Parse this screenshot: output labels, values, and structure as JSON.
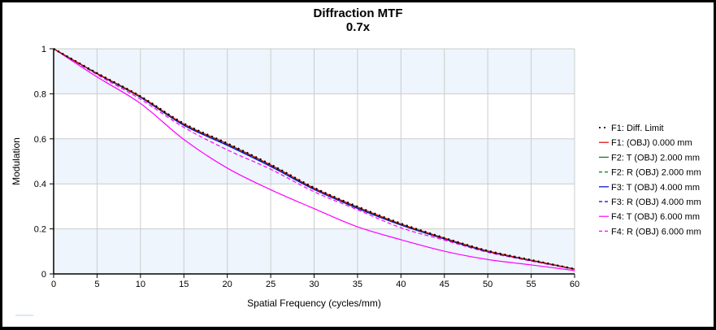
{
  "chart_data": {
    "type": "line",
    "title": "Diffraction MTF",
    "subtitle": "0.7x",
    "xlabel": "Spatial Frequency (cycles/mm)",
    "ylabel": "Modulation",
    "xlim": [
      0,
      60
    ],
    "ylim": [
      0,
      1
    ],
    "xticks": [
      0,
      5,
      10,
      15,
      20,
      25,
      30,
      35,
      40,
      45,
      50,
      55,
      60
    ],
    "yticks": [
      0,
      0.2,
      0.4,
      0.6,
      0.8,
      1
    ],
    "ytick_labels": [
      "0",
      "0.2",
      "0.4",
      "0.6",
      "0.8",
      "1"
    ],
    "grid": true,
    "legend_position": "right",
    "x": [
      0,
      5,
      10,
      15,
      20,
      25,
      30,
      35,
      40,
      45,
      50,
      55,
      60
    ],
    "series": [
      {
        "name": "F1: Diff. Limit",
        "color": "#000000",
        "style": "dotted",
        "values": [
          1,
          0.892,
          0.789,
          0.668,
          0.58,
          0.486,
          0.383,
          0.299,
          0.224,
          0.16,
          0.103,
          0.062,
          0.022
        ]
      },
      {
        "name": "F1: (OBJ) 0.000 mm",
        "color": "#e00000",
        "style": "solid",
        "values": [
          1,
          0.891,
          0.788,
          0.666,
          0.578,
          0.484,
          0.381,
          0.297,
          0.222,
          0.159,
          0.102,
          0.061,
          0.022
        ]
      },
      {
        "name": "F2: T (OBJ) 2.000 mm",
        "color": "#008000",
        "style": "solid",
        "values": [
          1,
          0.89,
          0.787,
          0.665,
          0.577,
          0.483,
          0.38,
          0.296,
          0.221,
          0.158,
          0.101,
          0.061,
          0.022
        ]
      },
      {
        "name": "F2: R (OBJ) 2.000 mm",
        "color": "#008000",
        "style": "dashed",
        "values": [
          1,
          0.89,
          0.786,
          0.664,
          0.576,
          0.482,
          0.379,
          0.295,
          0.22,
          0.157,
          0.101,
          0.06,
          0.021
        ]
      },
      {
        "name": "F3: T (OBJ) 4.000 mm",
        "color": "#0000e0",
        "style": "solid",
        "values": [
          1,
          0.889,
          0.784,
          0.66,
          0.571,
          0.477,
          0.375,
          0.291,
          0.217,
          0.155,
          0.099,
          0.059,
          0.021
        ]
      },
      {
        "name": "F3: R (OBJ) 4.000 mm",
        "color": "#0000e0",
        "style": "dashed",
        "values": [
          1,
          0.889,
          0.785,
          0.661,
          0.572,
          0.478,
          0.376,
          0.292,
          0.218,
          0.156,
          0.1,
          0.06,
          0.021
        ]
      },
      {
        "name": "F4: T (OBJ) 6.000 mm",
        "color": "#ff00ff",
        "style": "solid",
        "values": [
          1,
          0.875,
          0.757,
          0.597,
          0.47,
          0.374,
          0.29,
          0.209,
          0.152,
          0.101,
          0.064,
          0.04,
          0.015
        ]
      },
      {
        "name": "F4: R (OBJ) 6.000 mm",
        "color": "#ff00ff",
        "style": "dashed",
        "values": [
          1,
          0.885,
          0.776,
          0.651,
          0.551,
          0.465,
          0.365,
          0.285,
          0.205,
          0.15,
          0.096,
          0.057,
          0.02
        ]
      }
    ]
  }
}
